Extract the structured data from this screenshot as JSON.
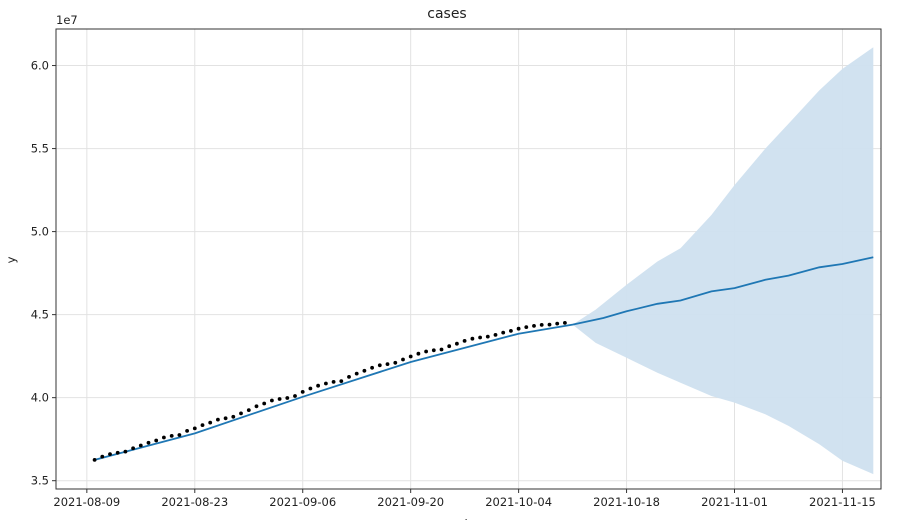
{
  "chart_data": {
    "type": "line",
    "title": "cases",
    "xlabel": "ds",
    "ylabel": "y",
    "y_offset_label": "1e7",
    "grid": true,
    "x_start": "2021-08-10",
    "x_range": [
      "2021-08-05",
      "2021-11-20"
    ],
    "ylim": [
      3.45,
      6.22
    ],
    "x_ticks": [
      "2021-08-09",
      "2021-08-23",
      "2021-09-06",
      "2021-09-20",
      "2021-10-04",
      "2021-10-18",
      "2021-11-01",
      "2021-11-15"
    ],
    "y_ticks": [
      "3.5",
      "4.0",
      "4.5",
      "5.0",
      "5.5",
      "6.0"
    ],
    "observed": {
      "start": "2021-08-10",
      "end": "2021-10-11",
      "values": [
        3.625,
        3.645,
        3.66,
        3.668,
        3.675,
        3.695,
        3.712,
        3.728,
        3.742,
        3.76,
        3.77,
        3.775,
        3.8,
        3.815,
        3.835,
        3.85,
        3.868,
        3.876,
        3.885,
        3.905,
        3.925,
        3.948,
        3.965,
        3.983,
        3.992,
        3.998,
        4.01,
        4.035,
        4.055,
        4.072,
        4.085,
        4.095,
        4.1,
        4.125,
        4.145,
        4.162,
        4.18,
        4.195,
        4.202,
        4.21,
        4.23,
        4.248,
        4.265,
        4.278,
        4.285,
        4.29,
        4.31,
        4.325,
        4.342,
        4.355,
        4.362,
        4.368,
        4.378,
        4.392,
        4.402,
        4.415,
        4.425,
        4.432,
        4.438,
        4.44,
        4.446,
        4.45
      ]
    },
    "forecast": {
      "values_by_date": [
        [
          "2021-08-10",
          3.625
        ],
        [
          "2021-08-23",
          3.785
        ],
        [
          "2021-09-06",
          4.005
        ],
        [
          "2021-09-20",
          4.215
        ],
        [
          "2021-10-04",
          4.385
        ],
        [
          "2021-10-11",
          4.44
        ],
        [
          "2021-10-15",
          4.48
        ],
        [
          "2021-10-18",
          4.52
        ],
        [
          "2021-10-22",
          4.565
        ],
        [
          "2021-10-25",
          4.585
        ],
        [
          "2021-10-29",
          4.64
        ],
        [
          "2021-11-01",
          4.66
        ],
        [
          "2021-11-05",
          4.71
        ],
        [
          "2021-11-08",
          4.735
        ],
        [
          "2021-11-12",
          4.785
        ],
        [
          "2021-11-15",
          4.805
        ],
        [
          "2021-11-19",
          4.845
        ]
      ],
      "upper": [
        [
          "2021-10-11",
          4.44
        ],
        [
          "2021-10-14",
          4.53
        ],
        [
          "2021-10-18",
          4.68
        ],
        [
          "2021-10-22",
          4.82
        ],
        [
          "2021-10-25",
          4.9
        ],
        [
          "2021-10-29",
          5.1
        ],
        [
          "2021-11-01",
          5.28
        ],
        [
          "2021-11-05",
          5.5
        ],
        [
          "2021-11-08",
          5.65
        ],
        [
          "2021-11-12",
          5.85
        ],
        [
          "2021-11-15",
          5.98
        ],
        [
          "2021-11-19",
          6.11
        ]
      ],
      "lower": [
        [
          "2021-10-11",
          4.44
        ],
        [
          "2021-10-14",
          4.33
        ],
        [
          "2021-10-18",
          4.24
        ],
        [
          "2021-10-22",
          4.15
        ],
        [
          "2021-10-25",
          4.09
        ],
        [
          "2021-10-29",
          4.01
        ],
        [
          "2021-11-01",
          3.97
        ],
        [
          "2021-11-05",
          3.9
        ],
        [
          "2021-11-08",
          3.83
        ],
        [
          "2021-11-12",
          3.72
        ],
        [
          "2021-11-15",
          3.62
        ],
        [
          "2021-11-19",
          3.54
        ]
      ]
    },
    "colors": {
      "forecast_line": "#1f77b4",
      "interval_fill": "#cfe0ef",
      "observed_points": "#000000",
      "grid": "#e2e2e2",
      "axes": "#333333"
    }
  }
}
